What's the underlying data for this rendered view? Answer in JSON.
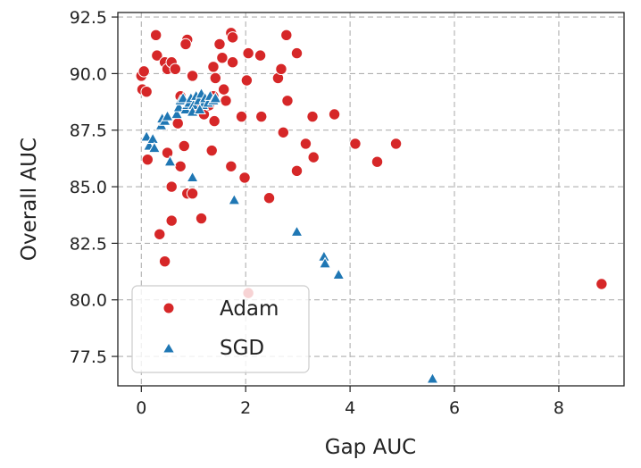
{
  "chart_data": {
    "type": "scatter",
    "title": "",
    "xlabel": "Gap AUC",
    "ylabel": "Overall AUC",
    "xlim": [
      -0.45,
      9.25
    ],
    "ylim": [
      76.2,
      92.7
    ],
    "xticks": [
      0,
      2,
      4,
      6,
      8
    ],
    "yticks": [
      77.5,
      80.0,
      82.5,
      85.0,
      87.5,
      90.0,
      92.5
    ],
    "xtick_labels": [
      "0",
      "2",
      "4",
      "6",
      "8"
    ],
    "ytick_labels": [
      "77.5",
      "80.0",
      "82.5",
      "85.0",
      "87.5",
      "90.0",
      "92.5"
    ],
    "grid": true,
    "legend_position": "lower-left",
    "series": [
      {
        "name": "Adam",
        "marker": "circle",
        "color": "#d62728",
        "points": [
          [
            0.0,
            89.9
          ],
          [
            0.05,
            90.1
          ],
          [
            0.02,
            89.3
          ],
          [
            0.1,
            89.2
          ],
          [
            0.12,
            86.2
          ],
          [
            0.28,
            91.7
          ],
          [
            0.3,
            90.8
          ],
          [
            0.45,
            90.5
          ],
          [
            0.5,
            90.2
          ],
          [
            0.58,
            90.5
          ],
          [
            0.65,
            90.2
          ],
          [
            0.88,
            91.5
          ],
          [
            0.85,
            91.3
          ],
          [
            0.75,
            89.0
          ],
          [
            0.7,
            87.8
          ],
          [
            0.82,
            86.8
          ],
          [
            0.5,
            86.5
          ],
          [
            0.75,
            85.9
          ],
          [
            0.58,
            85.0
          ],
          [
            0.88,
            84.7
          ],
          [
            0.98,
            84.7
          ],
          [
            0.58,
            83.5
          ],
          [
            1.15,
            83.6
          ],
          [
            0.35,
            82.9
          ],
          [
            0.45,
            81.7
          ],
          [
            0.98,
            89.9
          ],
          [
            1.05,
            88.5
          ],
          [
            1.2,
            88.2
          ],
          [
            1.3,
            88.6
          ],
          [
            1.38,
            89.0
          ],
          [
            1.42,
            89.8
          ],
          [
            1.38,
            90.3
          ],
          [
            1.55,
            90.7
          ],
          [
            1.5,
            91.3
          ],
          [
            1.72,
            91.8
          ],
          [
            1.75,
            91.6
          ],
          [
            1.75,
            90.5
          ],
          [
            1.62,
            88.8
          ],
          [
            1.58,
            89.3
          ],
          [
            1.4,
            87.9
          ],
          [
            1.35,
            86.6
          ],
          [
            1.72,
            85.9
          ],
          [
            1.98,
            85.4
          ],
          [
            1.92,
            88.1
          ],
          [
            2.02,
            89.7
          ],
          [
            2.05,
            90.9
          ],
          [
            2.28,
            90.8
          ],
          [
            2.3,
            88.1
          ],
          [
            2.45,
            84.5
          ],
          [
            2.62,
            89.8
          ],
          [
            2.68,
            90.2
          ],
          [
            2.72,
            87.4
          ],
          [
            2.78,
            91.7
          ],
          [
            2.8,
            88.8
          ],
          [
            2.98,
            90.9
          ],
          [
            2.98,
            85.7
          ],
          [
            3.15,
            86.9
          ],
          [
            3.28,
            88.1
          ],
          [
            3.3,
            86.3
          ],
          [
            3.7,
            88.2
          ],
          [
            4.1,
            86.9
          ],
          [
            4.52,
            86.1
          ],
          [
            4.88,
            86.9
          ],
          [
            8.82,
            80.7
          ],
          [
            2.05,
            80.3
          ]
        ]
      },
      {
        "name": "SGD",
        "marker": "triangle",
        "color": "#1f77b4",
        "points": [
          [
            0.1,
            87.2
          ],
          [
            0.15,
            86.8
          ],
          [
            0.22,
            87.1
          ],
          [
            0.25,
            86.7
          ],
          [
            0.38,
            87.7
          ],
          [
            0.4,
            88.0
          ],
          [
            0.45,
            87.9
          ],
          [
            0.55,
            86.1
          ],
          [
            0.68,
            88.2
          ],
          [
            0.72,
            88.5
          ],
          [
            0.75,
            88.8
          ],
          [
            0.8,
            88.9
          ],
          [
            0.85,
            88.4
          ],
          [
            0.88,
            88.6
          ],
          [
            0.92,
            88.7
          ],
          [
            0.95,
            88.9
          ],
          [
            1.0,
            88.6
          ],
          [
            1.05,
            89.0
          ],
          [
            1.1,
            88.8
          ],
          [
            1.15,
            89.1
          ],
          [
            1.18,
            88.6
          ],
          [
            1.22,
            88.9
          ],
          [
            1.28,
            88.7
          ],
          [
            1.32,
            89.0
          ],
          [
            1.38,
            88.8
          ],
          [
            1.42,
            88.9
          ],
          [
            0.98,
            88.3
          ],
          [
            1.12,
            88.4
          ],
          [
            0.5,
            88.1
          ],
          [
            0.98,
            85.4
          ],
          [
            1.78,
            84.4
          ],
          [
            2.98,
            83.0
          ],
          [
            3.5,
            81.9
          ],
          [
            3.52,
            81.6
          ],
          [
            3.78,
            81.1
          ],
          [
            5.58,
            76.5
          ]
        ]
      }
    ]
  }
}
